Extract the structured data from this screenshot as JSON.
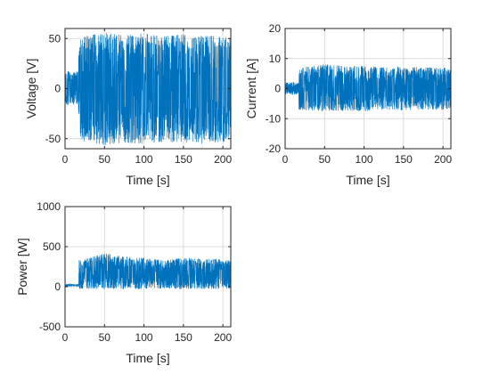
{
  "chart_data": [
    {
      "type": "line",
      "panel": "voltage",
      "title": "",
      "xlabel": "Time [s]",
      "ylabel": "Voltage [V]",
      "xlim": [
        0,
        210
      ],
      "ylim": [
        -60,
        60
      ],
      "xticks": [
        0,
        50,
        100,
        150,
        200
      ],
      "yticks": [
        -50,
        0,
        50
      ],
      "xtick_labels": [
        "0",
        "50",
        "100",
        "150",
        "200"
      ],
      "ytick_labels": [
        "-50",
        "0",
        "50"
      ],
      "grid": true,
      "color": "#0072BD",
      "series": [
        {
          "x": [
            0,
            5,
            10,
            15,
            17,
            17.5,
            25,
            50,
            75,
            100,
            125,
            150,
            175,
            200,
            210
          ],
          "upper": [
            15,
            18,
            16,
            17,
            17,
            50,
            52,
            56,
            53,
            55,
            52,
            54,
            53,
            52,
            50
          ],
          "lower": [
            -15,
            -17,
            -16,
            -16,
            -16,
            -50,
            -53,
            -56,
            -54,
            -55,
            -53,
            -54,
            -55,
            -53,
            -50
          ]
        }
      ]
    },
    {
      "type": "line",
      "panel": "current",
      "title": "",
      "xlabel": "Time [s]",
      "ylabel": "Current [A]",
      "xlim": [
        0,
        210
      ],
      "ylim": [
        -20,
        20
      ],
      "xticks": [
        0,
        50,
        100,
        150,
        200
      ],
      "yticks": [
        -20,
        -10,
        0,
        10,
        20
      ],
      "xtick_labels": [
        "0",
        "50",
        "100",
        "150",
        "200"
      ],
      "ytick_labels": [
        "-20",
        "-10",
        "0",
        "10",
        "20"
      ],
      "grid": true,
      "color": "#0072BD",
      "series": [
        {
          "x": [
            0,
            5,
            10,
            15,
            17,
            17.5,
            25,
            50,
            75,
            100,
            125,
            150,
            175,
            200,
            210
          ],
          "upper": [
            2,
            2,
            2.2,
            2,
            2,
            7,
            7.2,
            8,
            7.5,
            7.5,
            7,
            7.3,
            7,
            7,
            6.5
          ],
          "lower": [
            -2,
            -2,
            -2.2,
            -2,
            -2,
            -7,
            -7.2,
            -7.5,
            -7.3,
            -7.5,
            -7,
            -7.2,
            -7,
            -7,
            -6.5
          ]
        }
      ]
    },
    {
      "type": "line",
      "panel": "power",
      "title": "",
      "xlabel": "Time [s]",
      "ylabel": "Power [W]",
      "xlim": [
        0,
        210
      ],
      "ylim": [
        -500,
        1000
      ],
      "xticks": [
        0,
        50,
        100,
        150,
        200
      ],
      "yticks": [
        -500,
        0,
        500,
        1000
      ],
      "xtick_labels": [
        "0",
        "50",
        "100",
        "150",
        "200"
      ],
      "ytick_labels": [
        "-500",
        "0",
        "500",
        "1000"
      ],
      "grid": true,
      "color": "#0072BD",
      "series": [
        {
          "x": [
            0,
            5,
            10,
            15,
            17,
            17.5,
            25,
            50,
            75,
            100,
            125,
            150,
            175,
            200,
            210
          ],
          "upper": [
            30,
            35,
            30,
            32,
            32,
            330,
            340,
            420,
            380,
            360,
            330,
            360,
            350,
            340,
            330
          ],
          "lower": [
            5,
            5,
            5,
            5,
            5,
            -25,
            -25,
            -30,
            -28,
            -28,
            -25,
            -28,
            -27,
            -26,
            -25
          ]
        }
      ]
    }
  ]
}
